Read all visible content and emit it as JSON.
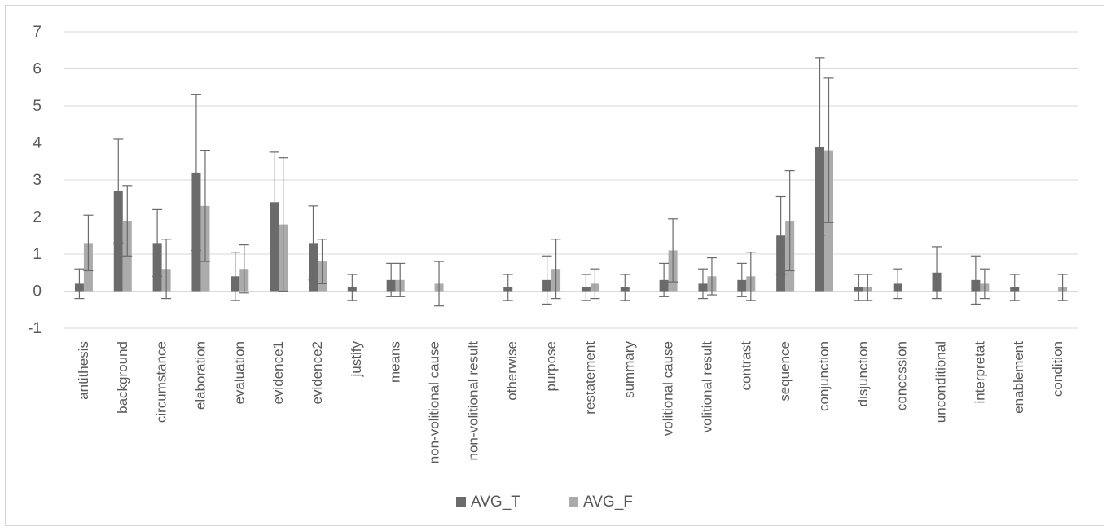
{
  "chart_data": {
    "type": "bar",
    "categories": [
      "antithesis",
      "background",
      "circumstance",
      "elaboration",
      "evaluation",
      "evidence1",
      "evidence2",
      "justify",
      "means",
      "non-volitional cause",
      "non-volitional result",
      "otherwise",
      "purpose",
      "restatement",
      "summary",
      "volitional cause",
      "volitional result",
      "contrast",
      "sequence",
      "conjunction",
      "disjunction",
      "concession",
      "unconditional",
      "interpretat",
      "enablement",
      "condition"
    ],
    "series": [
      {
        "name": "AVG_T",
        "color": "#6b6b6b",
        "values": [
          0.2,
          2.7,
          1.3,
          3.2,
          0.4,
          2.4,
          1.3,
          0.1,
          0.3,
          0,
          0,
          0.1,
          0.3,
          0.1,
          0.1,
          0.3,
          0.2,
          0.3,
          1.5,
          3.9,
          0.1,
          0.2,
          0.5,
          0.3,
          0.1,
          0
        ],
        "error": [
          0.4,
          1.4,
          0.9,
          2.1,
          0.65,
          1.35,
          1.0,
          0.35,
          0.45,
          0,
          0,
          0.35,
          0.65,
          0.35,
          0.35,
          0.45,
          0.4,
          0.45,
          1.05,
          2.4,
          0.35,
          0.4,
          0.7,
          0.65,
          0.35,
          0
        ]
      },
      {
        "name": "AVG_F",
        "color": "#ababab",
        "values": [
          1.3,
          1.9,
          0.6,
          2.3,
          0.6,
          1.8,
          0.8,
          0,
          0.3,
          0.2,
          0,
          0,
          0.6,
          0.2,
          0,
          1.1,
          0.4,
          0.4,
          1.9,
          3.8,
          0.1,
          0,
          0,
          0.2,
          0,
          0.1
        ],
        "error": [
          0.75,
          0.95,
          0.8,
          1.5,
          0.65,
          1.8,
          0.6,
          0,
          0.45,
          0.6,
          0,
          0,
          0.8,
          0.4,
          0,
          0.85,
          0.5,
          0.65,
          1.35,
          1.95,
          0.35,
          0,
          0,
          0.4,
          0,
          0.35
        ]
      }
    ],
    "yticks": [
      "-1",
      "0",
      "1",
      "2",
      "3",
      "4",
      "5",
      "6",
      "7"
    ],
    "ylim": [
      -1,
      7
    ],
    "grid": true,
    "legend": {
      "position": "bottom",
      "entries": [
        "AVG_T",
        "AVG_F"
      ]
    },
    "title": "",
    "xlabel": "",
    "ylabel": ""
  }
}
